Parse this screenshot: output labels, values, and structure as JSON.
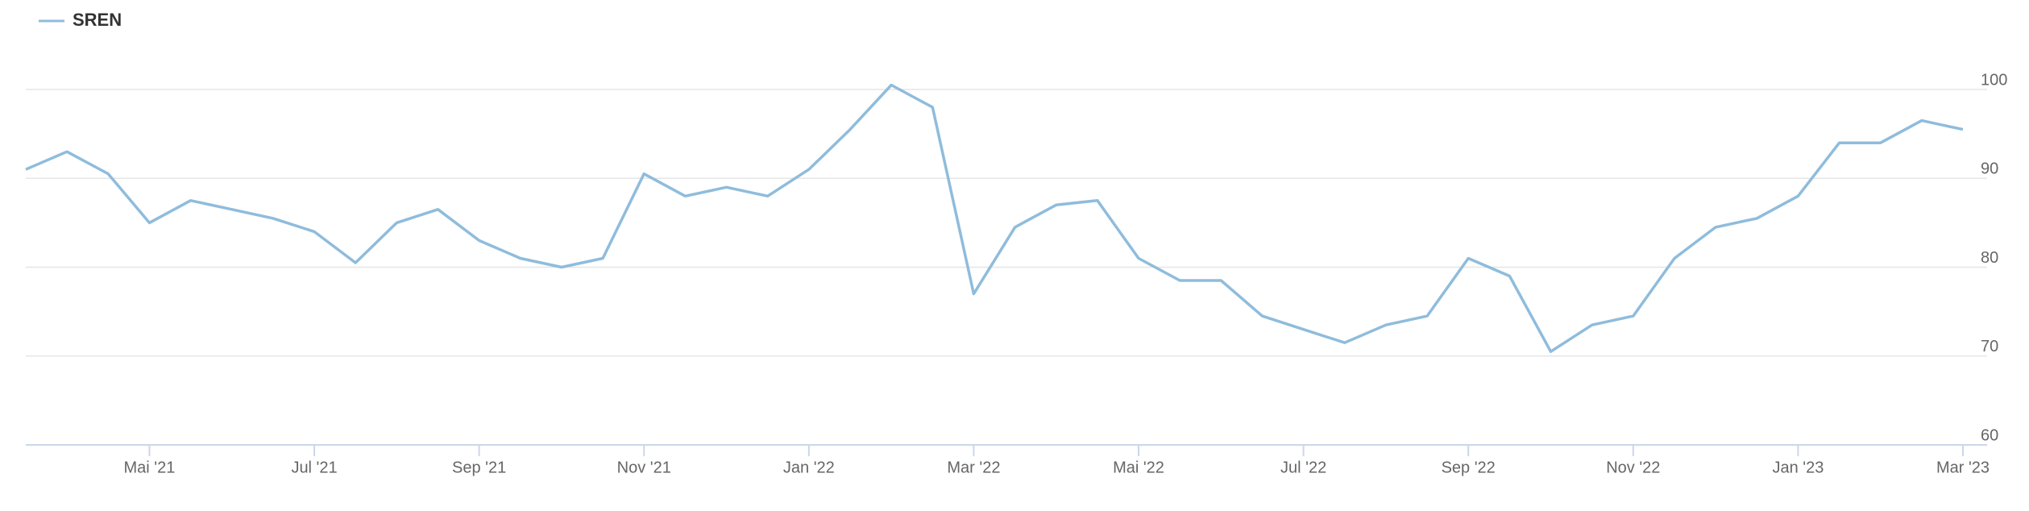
{
  "chart_data": {
    "type": "line",
    "categories": [
      null,
      null,
      null,
      "Mai '21",
      null,
      null,
      null,
      "Jul '21",
      null,
      null,
      null,
      "Sep '21",
      null,
      null,
      null,
      "Nov '21",
      null,
      null,
      null,
      "Jan '22",
      null,
      null,
      null,
      "Mar '22",
      null,
      null,
      null,
      "Mai '22",
      null,
      null,
      null,
      "Jul '22",
      null,
      null,
      null,
      "Sep '22",
      null,
      null,
      null,
      "Nov '22",
      null,
      null,
      null,
      "Jan '23",
      null,
      null,
      null,
      "Mar '23"
    ],
    "series": [
      {
        "name": "SREN",
        "color": "#8fbcdc",
        "values": [
          91,
          93,
          90.5,
          85,
          87.5,
          86.5,
          85.5,
          84,
          80.5,
          85,
          86.5,
          83,
          81,
          80,
          81,
          90.5,
          88,
          89,
          88,
          91,
          95.5,
          100.5,
          98,
          77,
          84.5,
          87,
          87.5,
          81,
          78.5,
          78.5,
          74.5,
          73,
          71.5,
          73.5,
          74.5,
          81,
          79,
          70.5,
          73.5,
          74.5,
          81,
          84.5,
          85.5,
          88,
          94,
          94,
          96.5,
          95.5
        ]
      }
    ],
    "ylim": [
      60,
      100
    ],
    "yticks": [
      60,
      70,
      80,
      90,
      100
    ],
    "grid": true
  }
}
